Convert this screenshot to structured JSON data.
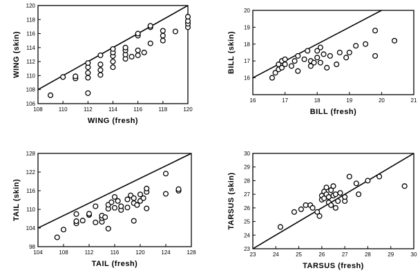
{
  "chart_data": [
    {
      "type": "scatter",
      "xlabel": "WING (fresh)",
      "ylabel": "WING (skin)",
      "xlim": [
        108,
        120
      ],
      "ylim": [
        106,
        120
      ],
      "xticks": [
        108,
        110,
        112,
        114,
        116,
        118,
        120
      ],
      "yticks": [
        106,
        108,
        110,
        112,
        114,
        116,
        118,
        120
      ],
      "reference_line": "y = x",
      "series": [
        {
          "points": [
            [
              109,
              107.2
            ],
            [
              110,
              109.8
            ],
            [
              111,
              109.6
            ],
            [
              111,
              109.9
            ],
            [
              112,
              107.5
            ],
            [
              112,
              109.7
            ],
            [
              112,
              110.4
            ],
            [
              112,
              111.2
            ],
            [
              112,
              111.8
            ],
            [
              113,
              110.1
            ],
            [
              113,
              110.8
            ],
            [
              113,
              111.6
            ],
            [
              113,
              112.9
            ],
            [
              114,
              111.2
            ],
            [
              114,
              112.0
            ],
            [
              114,
              112.8
            ],
            [
              114,
              113.3
            ],
            [
              114,
              113.8
            ],
            [
              115,
              112.4
            ],
            [
              115,
              113.0
            ],
            [
              115,
              113.6
            ],
            [
              115,
              114.0
            ],
            [
              115.5,
              112.7
            ],
            [
              116,
              112.9
            ],
            [
              116,
              113.6
            ],
            [
              116,
              115.7
            ],
            [
              116,
              116.0
            ],
            [
              116.5,
              113.3
            ],
            [
              117,
              114.6
            ],
            [
              117,
              116.9
            ],
            [
              117,
              117.1
            ],
            [
              118,
              115.0
            ],
            [
              118,
              115.7
            ],
            [
              118,
              116.4
            ],
            [
              119,
              116.3
            ],
            [
              120,
              116.9
            ],
            [
              120,
              117.4
            ],
            [
              120,
              117.8
            ],
            [
              120,
              118.4
            ]
          ]
        }
      ]
    },
    {
      "type": "scatter",
      "xlabel": "BILL (fresh)",
      "ylabel": "BILL (skin)",
      "xlim": [
        16,
        21
      ],
      "ylim": [
        15,
        20
      ],
      "xticks": [
        16,
        17,
        18,
        19,
        20,
        21
      ],
      "yticks": [
        16,
        17,
        18,
        19,
        20
      ],
      "reference_line": "y = x",
      "series": [
        {
          "points": [
            [
              16.6,
              16.0
            ],
            [
              16.7,
              16.3
            ],
            [
              16.8,
              16.5
            ],
            [
              16.8,
              16.8
            ],
            [
              16.9,
              16.6
            ],
            [
              16.9,
              17.0
            ],
            [
              17.0,
              16.8
            ],
            [
              17.0,
              17.1
            ],
            [
              17.2,
              16.7
            ],
            [
              17.3,
              17.0
            ],
            [
              17.4,
              16.4
            ],
            [
              17.4,
              17.3
            ],
            [
              17.6,
              17.1
            ],
            [
              17.7,
              17.6
            ],
            [
              17.8,
              16.7
            ],
            [
              17.8,
              17.0
            ],
            [
              17.9,
              16.9
            ],
            [
              18.0,
              17.2
            ],
            [
              18.0,
              17.6
            ],
            [
              18.1,
              16.9
            ],
            [
              18.1,
              17.8
            ],
            [
              18.2,
              17.4
            ],
            [
              18.3,
              16.6
            ],
            [
              18.4,
              17.3
            ],
            [
              18.6,
              16.8
            ],
            [
              18.7,
              17.5
            ],
            [
              18.9,
              17.2
            ],
            [
              19.0,
              17.5
            ],
            [
              19.2,
              17.9
            ],
            [
              19.5,
              18.0
            ],
            [
              19.8,
              17.3
            ],
            [
              19.8,
              18.8
            ],
            [
              20.4,
              18.2
            ]
          ]
        }
      ]
    },
    {
      "type": "scatter",
      "xlabel": "TAIL (fresh)",
      "ylabel": "TAIL (skin)",
      "xlim": [
        104,
        128
      ],
      "ylim": [
        98,
        128
      ],
      "xticks": [
        104,
        108,
        112,
        116,
        120,
        124,
        128
      ],
      "yticks": [
        98,
        104,
        110,
        116,
        122,
        128
      ],
      "reference_line": "y = x",
      "series": [
        {
          "points": [
            [
              107,
              101.0
            ],
            [
              108,
              103.5
            ],
            [
              110,
              105.5
            ],
            [
              110,
              106.2
            ],
            [
              110,
              108.5
            ],
            [
              111,
              106.4
            ],
            [
              112,
              108.2
            ],
            [
              112,
              108.6
            ],
            [
              113,
              105.8
            ],
            [
              113,
              111.0
            ],
            [
              114,
              106.0
            ],
            [
              114,
              107.2
            ],
            [
              114,
              108.0
            ],
            [
              114.5,
              107.5
            ],
            [
              115,
              103.8
            ],
            [
              115,
              110.2
            ],
            [
              115,
              111.5
            ],
            [
              115.5,
              112.3
            ],
            [
              116,
              110.5
            ],
            [
              116,
              114.0
            ],
            [
              116.5,
              112.7
            ],
            [
              117,
              109.8
            ],
            [
              117,
              111.0
            ],
            [
              118,
              110.6
            ],
            [
              118,
              113.2
            ],
            [
              118.5,
              114.5
            ],
            [
              119,
              106.3
            ],
            [
              119,
              112.0
            ],
            [
              119,
              113.6
            ],
            [
              119.5,
              111.4
            ],
            [
              120,
              112.7
            ],
            [
              120,
              114.8
            ],
            [
              120.5,
              113.6
            ],
            [
              121,
              110.3
            ],
            [
              121,
              115.6
            ],
            [
              121,
              116.7
            ],
            [
              124,
              115.0
            ],
            [
              124,
              121.5
            ],
            [
              126,
              116.0
            ],
            [
              126,
              116.5
            ]
          ]
        }
      ]
    },
    {
      "type": "scatter",
      "xlabel": "TARSUS (fresh)",
      "ylabel": "TARSUS (skin)",
      "xlim": [
        23,
        30
      ],
      "ylim": [
        23,
        30
      ],
      "xticks": [
        23,
        24,
        25,
        26,
        27,
        28,
        29,
        30
      ],
      "yticks": [
        23,
        24,
        25,
        26,
        27,
        28,
        29,
        30
      ],
      "reference_line": "y = x",
      "series": [
        {
          "points": [
            [
              24.2,
              24.6
            ],
            [
              24.8,
              25.7
            ],
            [
              25.1,
              25.9
            ],
            [
              25.3,
              26.2
            ],
            [
              25.5,
              26.2
            ],
            [
              25.6,
              26.0
            ],
            [
              25.8,
              25.7
            ],
            [
              25.9,
              25.4
            ],
            [
              26.0,
              26.6
            ],
            [
              26.0,
              26.9
            ],
            [
              26.1,
              27.2
            ],
            [
              26.1,
              26.7
            ],
            [
              26.2,
              27.5
            ],
            [
              26.2,
              27.0
            ],
            [
              26.3,
              26.8
            ],
            [
              26.3,
              26.4
            ],
            [
              26.4,
              27.3
            ],
            [
              26.4,
              26.2
            ],
            [
              26.5,
              26.9
            ],
            [
              26.5,
              27.6
            ],
            [
              26.6,
              26.0
            ],
            [
              26.6,
              27.0
            ],
            [
              26.7,
              26.5
            ],
            [
              26.8,
              27.1
            ],
            [
              27.0,
              26.5
            ],
            [
              27.0,
              26.8
            ],
            [
              27.2,
              28.3
            ],
            [
              27.5,
              27.8
            ],
            [
              27.6,
              27.0
            ],
            [
              28.0,
              28.0
            ],
            [
              28.5,
              28.3
            ],
            [
              29.6,
              27.6
            ]
          ]
        }
      ]
    }
  ]
}
